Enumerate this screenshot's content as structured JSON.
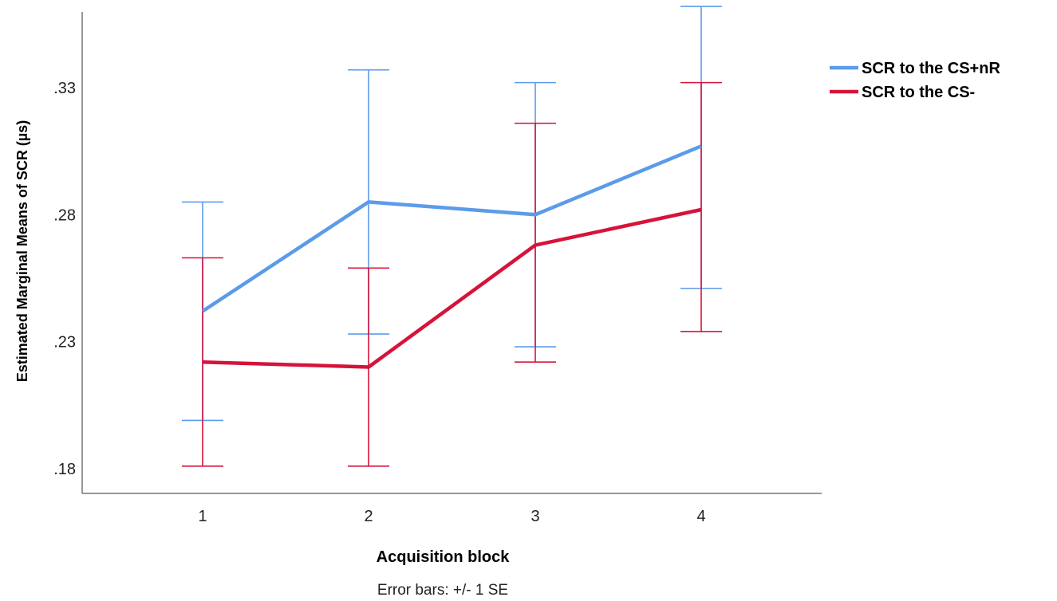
{
  "chart_data": {
    "type": "line",
    "xlabel": "Acquisition block",
    "ylabel": "Estimated Marginal Means of SCR (µs)",
    "note": "Error bars: +/- 1 SE",
    "categories": [
      "1",
      "2",
      "3",
      "4"
    ],
    "yticks": [
      ".18",
      ".23",
      ".28",
      ".33"
    ],
    "ytick_values": [
      0.18,
      0.23,
      0.28,
      0.33
    ],
    "ylim": [
      0.171,
      0.362
    ],
    "legend_position": "top-right",
    "grid": false,
    "series": [
      {
        "name": "SCR to the CS+nR",
        "color": "#5b9bea",
        "values": [
          0.242,
          0.285,
          0.28,
          0.307
        ],
        "se_low": [
          0.199,
          0.233,
          0.228,
          0.251
        ],
        "se_high": [
          0.285,
          0.337,
          0.332,
          0.362
        ]
      },
      {
        "name": "SCR to the CS-",
        "color": "#d6133a",
        "values": [
          0.222,
          0.22,
          0.268,
          0.282
        ],
        "se_low": [
          0.181,
          0.181,
          0.222,
          0.234
        ],
        "se_high": [
          0.263,
          0.259,
          0.316,
          0.332
        ]
      }
    ]
  }
}
